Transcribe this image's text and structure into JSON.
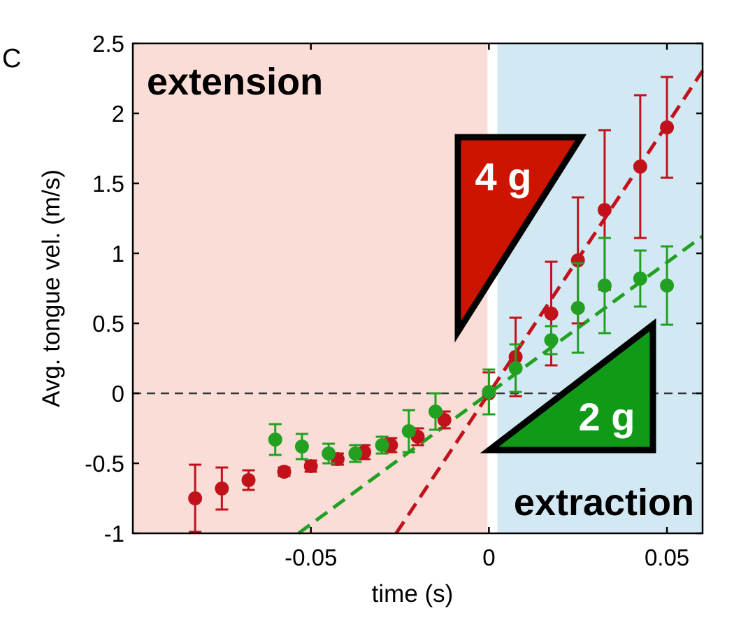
{
  "chart_data": {
    "type": "scatter",
    "panel_label": "C",
    "xlabel": "time (s)",
    "ylabel": "Avg. tongue vel. (m/s)",
    "xlim": [
      -0.1,
      0.06
    ],
    "ylim": [
      -1,
      2.5
    ],
    "x_ticks": [
      -0.05,
      0,
      0.05
    ],
    "x_tick_labels": [
      "-0.05",
      "0",
      "0.05"
    ],
    "y_ticks": [
      -1,
      -0.5,
      0,
      0.5,
      1,
      1.5,
      2,
      2.5
    ],
    "y_tick_labels": [
      "-1",
      "-0.5",
      "0",
      "0.5",
      "1",
      "1.5",
      "2",
      "2.5"
    ],
    "zero_line": 0,
    "regions": [
      {
        "label": "extension",
        "x_range": [
          -0.1,
          0
        ],
        "color": "#f9ddd6"
      },
      {
        "label": "extraction",
        "x_range": [
          0,
          0.06
        ],
        "color": "#d2e9f4"
      }
    ],
    "series": [
      {
        "name": "4 g",
        "color": "#c1121c",
        "x": [
          -0.0825,
          -0.075,
          -0.0675,
          -0.0575,
          -0.05,
          -0.0425,
          -0.035,
          -0.0275,
          -0.02,
          -0.0125,
          0,
          0.0075,
          0.0175,
          0.025,
          0.0325,
          0.0425,
          0.05
        ],
        "y": [
          -0.75,
          -0.68,
          -0.62,
          -0.56,
          -0.52,
          -0.47,
          -0.42,
          -0.37,
          -0.31,
          -0.19,
          0.0,
          0.26,
          0.57,
          0.95,
          1.31,
          1.62,
          1.9
        ],
        "err": [
          0.24,
          0.15,
          0.07,
          0.03,
          0.04,
          0.04,
          0.05,
          0.05,
          0.06,
          0.06,
          0.15,
          0.28,
          0.37,
          0.45,
          0.57,
          0.51,
          0.36
        ],
        "fit_slope": 38.4
      },
      {
        "name": "2 g",
        "color": "#22a022",
        "x": [
          -0.06,
          -0.0525,
          -0.045,
          -0.0375,
          -0.03,
          -0.0225,
          -0.015,
          0,
          0.0075,
          0.0175,
          0.025,
          0.0325,
          0.0425,
          0.05
        ],
        "y": [
          -0.33,
          -0.38,
          -0.43,
          -0.43,
          -0.37,
          -0.27,
          -0.13,
          0.01,
          0.18,
          0.38,
          0.61,
          0.77,
          0.82,
          0.77
        ],
        "err": [
          0.11,
          0.09,
          0.07,
          0.06,
          0.06,
          0.15,
          0.13,
          0.16,
          0.17,
          0.1,
          0.32,
          0.34,
          0.2,
          0.28
        ],
        "fit_slope": 18.7
      }
    ]
  }
}
